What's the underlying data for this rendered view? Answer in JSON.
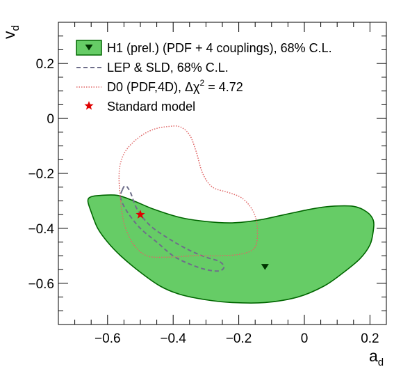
{
  "chart_data": {
    "type": "contour",
    "xlabel": "a",
    "xlabel_sub": "d",
    "ylabel": "v",
    "ylabel_sub": "d",
    "xlim": [
      -0.75,
      0.25
    ],
    "ylim": [
      -0.75,
      0.35
    ],
    "x_ticks": [
      -0.6,
      -0.4,
      -0.2,
      0,
      0.2
    ],
    "x_tick_labels": [
      "−0.6",
      "−0.4",
      "−0.2",
      "0",
      "0.2"
    ],
    "y_ticks": [
      -0.6,
      -0.4,
      -0.2,
      0,
      0.2
    ],
    "y_tick_labels": [
      "−0.6",
      "−0.4",
      "−0.2",
      "0",
      "0.2"
    ],
    "grid": false,
    "legend_position": "top-left",
    "colors": {
      "h1_fill": "#66cc66",
      "h1_line": "#006600",
      "lep_line": "#6e6e8a",
      "d0_line": "#e06666",
      "sm_marker": "#e00000"
    },
    "legend": [
      {
        "name": "H1 (prel.) (PDF + 4 couplings), 68% C.L.",
        "style": "filled-contour-with-marker"
      },
      {
        "name": "LEP & SLD, 68% C.L.",
        "style": "dashed"
      },
      {
        "name": "D0 (PDF,4D), Δχ² = 4.72",
        "style": "dotted"
      },
      {
        "name": "Standard model",
        "style": "star"
      }
    ],
    "legend_labels": {
      "h1": "H1 (prel.) (PDF + 4 couplings), 68% C.L.",
      "lep": "LEP & SLD, 68% C.L.",
      "d0_prefix": "D0 (PDF,4D), Δχ",
      "d0_sup": "2",
      "d0_suffix": " = 4.72",
      "sm": "Standard model"
    },
    "series": [
      {
        "name": "H1 (prel.) (PDF + 4 couplings), 68% C.L.",
        "kind": "contour",
        "best_fit": [
          -0.12,
          -0.54
        ],
        "points": [
          [
            -0.66,
            -0.3
          ],
          [
            -0.65,
            -0.34
          ],
          [
            -0.63,
            -0.4
          ],
          [
            -0.6,
            -0.45
          ],
          [
            -0.56,
            -0.5
          ],
          [
            -0.5,
            -0.56
          ],
          [
            -0.44,
            -0.61
          ],
          [
            -0.38,
            -0.64
          ],
          [
            -0.3,
            -0.66
          ],
          [
            -0.22,
            -0.67
          ],
          [
            -0.12,
            -0.67
          ],
          [
            -0.02,
            -0.65
          ],
          [
            0.06,
            -0.61
          ],
          [
            0.12,
            -0.56
          ],
          [
            0.17,
            -0.51
          ],
          [
            0.2,
            -0.46
          ],
          [
            0.21,
            -0.41
          ],
          [
            0.21,
            -0.37
          ],
          [
            0.19,
            -0.34
          ],
          [
            0.15,
            -0.32
          ],
          [
            0.08,
            -0.32
          ],
          [
            0.02,
            -0.33
          ],
          [
            -0.06,
            -0.35
          ],
          [
            -0.14,
            -0.37
          ],
          [
            -0.22,
            -0.38
          ],
          [
            -0.3,
            -0.375
          ],
          [
            -0.38,
            -0.36
          ],
          [
            -0.46,
            -0.33
          ],
          [
            -0.52,
            -0.3
          ],
          [
            -0.57,
            -0.28
          ],
          [
            -0.62,
            -0.28
          ],
          [
            -0.65,
            -0.285
          ]
        ]
      },
      {
        "name": "LEP & SLD, 68% C.L.",
        "kind": "contour",
        "points": [
          [
            -0.555,
            -0.26
          ],
          [
            -0.545,
            -0.245
          ],
          [
            -0.53,
            -0.27
          ],
          [
            -0.51,
            -0.33
          ],
          [
            -0.47,
            -0.39
          ],
          [
            -0.41,
            -0.44
          ],
          [
            -0.35,
            -0.48
          ],
          [
            -0.3,
            -0.505
          ],
          [
            -0.26,
            -0.52
          ],
          [
            -0.245,
            -0.54
          ],
          [
            -0.26,
            -0.555
          ],
          [
            -0.3,
            -0.55
          ],
          [
            -0.35,
            -0.53
          ],
          [
            -0.4,
            -0.5
          ],
          [
            -0.45,
            -0.45
          ],
          [
            -0.5,
            -0.4
          ],
          [
            -0.54,
            -0.34
          ],
          [
            -0.56,
            -0.29
          ]
        ]
      },
      {
        "name": "D0 (PDF,4D), Δχ² = 4.72",
        "kind": "contour",
        "points": [
          [
            -0.56,
            -0.3
          ],
          [
            -0.565,
            -0.22
          ],
          [
            -0.56,
            -0.16
          ],
          [
            -0.54,
            -0.11
          ],
          [
            -0.5,
            -0.065
          ],
          [
            -0.46,
            -0.04
          ],
          [
            -0.42,
            -0.03
          ],
          [
            -0.38,
            -0.03
          ],
          [
            -0.35,
            -0.06
          ],
          [
            -0.33,
            -0.12
          ],
          [
            -0.31,
            -0.2
          ],
          [
            -0.28,
            -0.25
          ],
          [
            -0.23,
            -0.27
          ],
          [
            -0.19,
            -0.29
          ],
          [
            -0.16,
            -0.33
          ],
          [
            -0.145,
            -0.38
          ],
          [
            -0.145,
            -0.45
          ],
          [
            -0.16,
            -0.48
          ],
          [
            -0.2,
            -0.495
          ],
          [
            -0.26,
            -0.5
          ],
          [
            -0.34,
            -0.5
          ],
          [
            -0.42,
            -0.505
          ],
          [
            -0.48,
            -0.5
          ],
          [
            -0.52,
            -0.46
          ],
          [
            -0.545,
            -0.4
          ],
          [
            -0.555,
            -0.35
          ]
        ]
      },
      {
        "name": "Standard model",
        "kind": "point",
        "points": [
          [
            -0.5,
            -0.35
          ]
        ]
      }
    ]
  }
}
